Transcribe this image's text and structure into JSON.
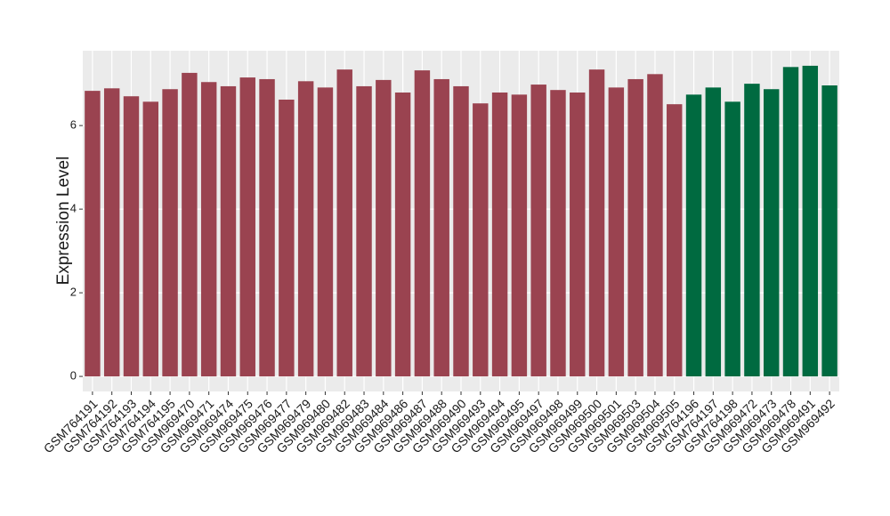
{
  "chart_data": {
    "type": "bar",
    "y_label": "Expression Level",
    "categories": [
      "GSM764191",
      "GSM764192",
      "GSM764193",
      "GSM764194",
      "GSM764195",
      "GSM969470",
      "GSM969471",
      "GSM969474",
      "GSM969475",
      "GSM969476",
      "GSM969477",
      "GSM969479",
      "GSM969480",
      "GSM969482",
      "GSM969483",
      "GSM969484",
      "GSM969486",
      "GSM969487",
      "GSM969488",
      "GSM969490",
      "GSM969493",
      "GSM969494",
      "GSM969495",
      "GSM969497",
      "GSM969498",
      "GSM969499",
      "GSM969500",
      "GSM969501",
      "GSM969503",
      "GSM969504",
      "GSM969505",
      "GSM764196",
      "GSM764197",
      "GSM764198",
      "GSM969472",
      "GSM969473",
      "GSM969478",
      "GSM969491",
      "GSM969492"
    ],
    "values": [
      6.83,
      6.89,
      6.7,
      6.57,
      6.87,
      7.26,
      7.04,
      6.94,
      7.15,
      7.11,
      6.62,
      7.06,
      6.91,
      7.34,
      6.94,
      7.09,
      6.79,
      7.32,
      7.11,
      6.94,
      6.53,
      6.79,
      6.74,
      6.98,
      6.85,
      6.79,
      7.34,
      6.91,
      7.11,
      7.23,
      6.51,
      6.74,
      6.91,
      6.57,
      7.0,
      6.87,
      7.4,
      7.43,
      6.96
    ],
    "colors": [
      "#9a4350",
      "#9a4350",
      "#9a4350",
      "#9a4350",
      "#9a4350",
      "#9a4350",
      "#9a4350",
      "#9a4350",
      "#9a4350",
      "#9a4350",
      "#9a4350",
      "#9a4350",
      "#9a4350",
      "#9a4350",
      "#9a4350",
      "#9a4350",
      "#9a4350",
      "#9a4350",
      "#9a4350",
      "#9a4350",
      "#9a4350",
      "#9a4350",
      "#9a4350",
      "#9a4350",
      "#9a4350",
      "#9a4350",
      "#9a4350",
      "#9a4350",
      "#9a4350",
      "#9a4350",
      "#9a4350",
      "#006a40",
      "#006a40",
      "#006a40",
      "#006a40",
      "#006a40",
      "#006a40",
      "#006a40",
      "#006a40"
    ],
    "ylim": [
      -0.36,
      7.79
    ],
    "yticks": [
      0,
      2,
      4,
      6
    ],
    "grid": true
  }
}
